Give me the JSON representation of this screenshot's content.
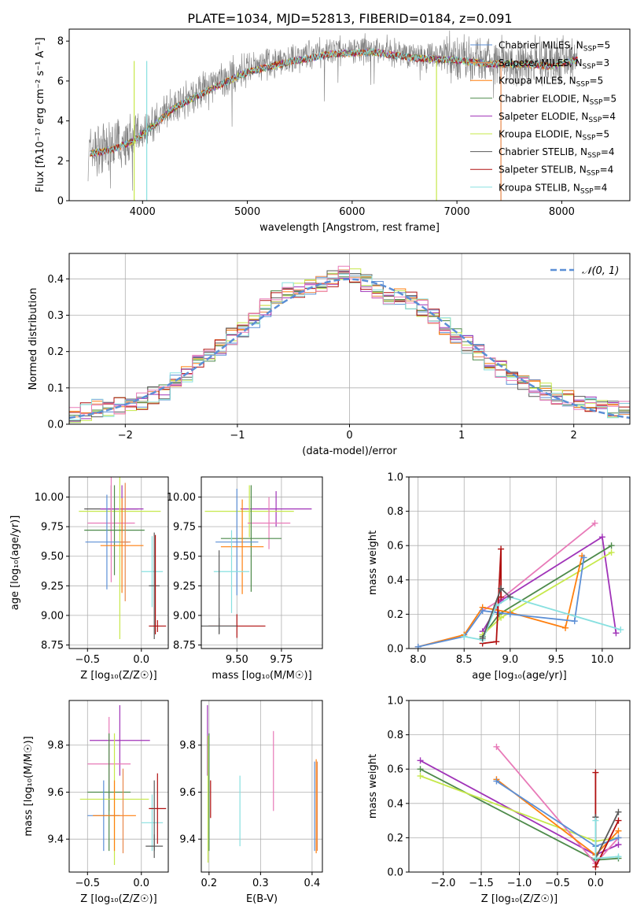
{
  "title": "PLATE=1034, MJD=52813, FIBERID=0184, z=0.091",
  "colors": {
    "chabrier_miles": "#5b8fd6",
    "salpeter_miles": "#e8874a",
    "kroupa_miles": "#ff7f0e",
    "chabrier_elodie": "#4d8a4a",
    "salpeter_elodie": "#a033b8",
    "kroupa_elodie": "#c6e84a",
    "chabrier_stelib": "#5a5a5a",
    "salpeter_stelib": "#b01010",
    "kroupa_stelib": "#88e0e0",
    "pink": "#e87ab8",
    "gaussian": "#5b8fd6"
  },
  "chart_data": [
    {
      "id": "spectrum",
      "type": "line",
      "xlabel": "wavelength [Angstrom, rest frame]",
      "ylabel": "Flux [fλ10⁻¹⁷ erg cm⁻² s⁻¹ A⁻¹]",
      "xlim": [
        3300,
        8650
      ],
      "ylim": [
        0,
        8.6
      ],
      "xticks": [
        4000,
        5000,
        6000,
        7000,
        8000
      ],
      "yticks": [
        0,
        2,
        4,
        6,
        8
      ],
      "continuum": {
        "x": [
          3500,
          3700,
          3900,
          4100,
          4300,
          4600,
          5000,
          5400,
          5800,
          6200,
          6600,
          7000,
          7300,
          7600,
          7900,
          8150
        ],
        "y": [
          2.5,
          2.7,
          3.1,
          3.9,
          4.8,
          5.6,
          6.6,
          7.1,
          7.5,
          7.6,
          7.3,
          7.2,
          7.0,
          7.0,
          6.9,
          7.2
        ]
      },
      "legend": [
        {
          "label": "Chabrier MILES, N",
          "sub": "SSP",
          "suffix": "=5",
          "color_key": "chabrier_miles"
        },
        {
          "label": "Salpeter MILES, N",
          "sub": "SSP",
          "suffix": "=3",
          "color_key": "salpeter_miles"
        },
        {
          "label": "Kroupa MILES, N",
          "sub": "SSP",
          "suffix": "=5",
          "color_key": "kroupa_miles"
        },
        {
          "label": "Chabrier ELODIE, N",
          "sub": "SSP",
          "suffix": "=5",
          "color_key": "chabrier_elodie"
        },
        {
          "label": "Salpeter ELODIE, N",
          "sub": "SSP",
          "suffix": "=4",
          "color_key": "salpeter_elodie"
        },
        {
          "label": "Kroupa ELODIE, N",
          "sub": "SSP",
          "suffix": "=5",
          "color_key": "kroupa_elodie"
        },
        {
          "label": "Chabrier STELIB, N",
          "sub": "SSP",
          "suffix": "=4",
          "color_key": "chabrier_stelib"
        },
        {
          "label": "Salpeter STELIB, N",
          "sub": "SSP",
          "suffix": "=4",
          "color_key": "salpeter_stelib"
        },
        {
          "label": "Kroupa STELIB, N",
          "sub": "SSP",
          "suffix": "=4",
          "color_key": "kroupa_stelib"
        }
      ]
    },
    {
      "id": "residuals",
      "type": "step",
      "xlabel": "(data-model)/error",
      "ylabel": "Normed distribution",
      "xlim": [
        -2.5,
        2.5
      ],
      "ylim": [
        0,
        0.47
      ],
      "xticks": [
        -2,
        -1,
        0,
        1,
        2
      ],
      "yticks": [
        0.0,
        0.1,
        0.2,
        0.3,
        0.4
      ],
      "legend": "𝒩(0, 1)",
      "bins": [
        -2.5,
        -2.4,
        -2.3,
        -2.2,
        -2.1,
        -2.0,
        -1.9,
        -1.8,
        -1.7,
        -1.6,
        -1.5,
        -1.4,
        -1.3,
        -1.2,
        -1.1,
        -1.0,
        -0.9,
        -0.8,
        -0.7,
        -0.6,
        -0.5,
        -0.4,
        -0.3,
        -0.2,
        -0.1,
        0.0,
        0.1,
        0.2,
        0.3,
        0.4,
        0.5,
        0.6,
        0.7,
        0.8,
        0.9,
        1.0,
        1.1,
        1.2,
        1.3,
        1.4,
        1.5,
        1.6,
        1.7,
        1.8,
        1.9,
        2.0,
        2.1,
        2.2,
        2.3,
        2.4
      ],
      "hist": [
        0.03,
        0.035,
        0.045,
        0.04,
        0.05,
        0.05,
        0.065,
        0.08,
        0.09,
        0.12,
        0.14,
        0.18,
        0.19,
        0.21,
        0.24,
        0.26,
        0.29,
        0.32,
        0.35,
        0.37,
        0.37,
        0.38,
        0.39,
        0.4,
        0.42,
        0.41,
        0.39,
        0.37,
        0.35,
        0.35,
        0.34,
        0.32,
        0.3,
        0.27,
        0.24,
        0.22,
        0.2,
        0.17,
        0.15,
        0.13,
        0.12,
        0.1,
        0.09,
        0.08,
        0.07,
        0.06,
        0.05,
        0.045,
        0.04,
        0.04
      ]
    },
    {
      "id": "age_vs_Z",
      "type": "errorbar",
      "xlabel": "Z [log₁₀(Z/Z☉)]",
      "ylabel": "age  [log₁₀(age/yr)]",
      "xlim": [
        -0.67,
        0.25
      ],
      "ylim": [
        8.72,
        10.17
      ],
      "xticks": [
        -0.5,
        0.0
      ],
      "yticks": [
        8.75,
        9.0,
        9.25,
        9.5,
        9.75,
        10.0
      ],
      "points": [
        {
          "x": -0.28,
          "xerr": 0.25,
          "y": 9.9,
          "yerr": 0.2,
          "color_key": "chabrier_stelib"
        },
        {
          "x": -0.18,
          "xerr": 0.2,
          "y": 9.9,
          "yerr": 0.2,
          "color_key": "salpeter_elodie"
        },
        {
          "x": -0.2,
          "xerr": 0.38,
          "y": 9.88,
          "yerr": 1.08,
          "color_key": "kroupa_elodie"
        },
        {
          "x": -0.28,
          "xerr": 0.22,
          "y": 9.78,
          "yerr": 0.5,
          "color_key": "pink"
        },
        {
          "x": -0.25,
          "xerr": 0.28,
          "y": 9.72,
          "yerr": 0.38,
          "color_key": "chabrier_elodie"
        },
        {
          "x": -0.32,
          "xerr": 0.2,
          "y": 9.62,
          "yerr": 0.4,
          "color_key": "chabrier_miles"
        },
        {
          "x": -0.18,
          "xerr": 0.2,
          "y": 9.59,
          "yerr": 0.4,
          "color_key": "kroupa_miles"
        },
        {
          "x": -0.15,
          "xerr": 0.05,
          "y": 9.62,
          "yerr": 0.5,
          "color_key": "salpeter_miles"
        },
        {
          "x": 0.1,
          "xerr": 0.1,
          "y": 9.37,
          "yerr": 0.3,
          "color_key": "kroupa_stelib"
        },
        {
          "x": 0.12,
          "xerr": 0.05,
          "y": 9.25,
          "yerr": 0.45,
          "color_key": "chabrier_stelib"
        },
        {
          "x": 0.15,
          "xerr": 0.08,
          "y": 8.91,
          "yerr": 0.05,
          "color_key": "salpeter_stelib"
        },
        {
          "x": 0.13,
          "xerr": 0.0,
          "y": 9.26,
          "yerr": 0.42,
          "color_key": "salpeter_stelib"
        }
      ]
    },
    {
      "id": "age_vs_mass",
      "type": "errorbar",
      "xlabel": "mass [log₁₀(M/M☉)]",
      "ylabel": "",
      "xlim": [
        9.3,
        9.98
      ],
      "ylim": [
        8.72,
        10.17
      ],
      "xticks": [
        9.5,
        9.75
      ],
      "yticks": [
        8.75,
        9.0,
        9.25,
        9.5,
        9.75,
        10.0
      ],
      "points": [
        {
          "x": 9.72,
          "xerr": 0.2,
          "y": 9.9,
          "yerr": 0.15,
          "color_key": "salpeter_elodie"
        },
        {
          "x": 9.57,
          "xerr": 0.25,
          "y": 9.88,
          "yerr": 0.22,
          "color_key": "kroupa_elodie"
        },
        {
          "x": 9.68,
          "xerr": 0.12,
          "y": 9.78,
          "yerr": 0.22,
          "color_key": "pink"
        },
        {
          "x": 9.58,
          "xerr": 0.17,
          "y": 9.65,
          "yerr": 0.45,
          "color_key": "chabrier_elodie"
        },
        {
          "x": 9.5,
          "xerr": 0.12,
          "y": 9.62,
          "yerr": 0.45,
          "color_key": "chabrier_miles"
        },
        {
          "x": 9.53,
          "xerr": 0.12,
          "y": 9.58,
          "yerr": 0.4,
          "color_key": "kroupa_miles"
        },
        {
          "x": 9.47,
          "xerr": 0.1,
          "y": 9.37,
          "yerr": 0.35,
          "color_key": "kroupa_stelib"
        },
        {
          "x": 9.5,
          "xerr": 0.16,
          "y": 8.91,
          "yerr": 0.1,
          "color_key": "salpeter_stelib"
        },
        {
          "x": 9.4,
          "xerr": 0.1,
          "y": 8.91,
          "yerr": 0.07,
          "color_key": "chabrier_stelib"
        },
        {
          "x": 9.4,
          "xerr": 0.0,
          "y": 9.2,
          "yerr": 0.35,
          "color_key": "chabrier_stelib"
        }
      ]
    },
    {
      "id": "massweight_vs_age",
      "type": "line",
      "xlabel": "age  [log₁₀(age/yr)]",
      "ylabel": "mass weight",
      "xlim": [
        7.9,
        10.3
      ],
      "ylim": [
        0,
        1.0
      ],
      "xticks": [
        8.0,
        8.5,
        9.0,
        9.5,
        10.0
      ],
      "yticks": [
        0.0,
        0.2,
        0.4,
        0.6,
        0.8,
        1.0
      ],
      "series": [
        {
          "color_key": "pink",
          "x": [
            8.7,
            8.88,
            9.92
          ],
          "y": [
            0.22,
            0.28,
            0.73
          ]
        },
        {
          "color_key": "salpeter_elodie",
          "x": [
            8.7,
            8.9,
            10.0,
            10.15
          ],
          "y": [
            0.1,
            0.28,
            0.65,
            0.09
          ]
        },
        {
          "color_key": "chabrier_elodie",
          "x": [
            8.7,
            8.88,
            10.1
          ],
          "y": [
            0.07,
            0.2,
            0.6
          ]
        },
        {
          "color_key": "kroupa_elodie",
          "x": [
            8.7,
            8.9,
            10.1
          ],
          "y": [
            0.08,
            0.18,
            0.56
          ]
        },
        {
          "color_key": "kroupa_miles",
          "x": [
            8.0,
            8.5,
            8.7,
            9.0,
            9.6,
            9.78
          ],
          "y": [
            0.01,
            0.08,
            0.24,
            0.21,
            0.12,
            0.54
          ]
        },
        {
          "color_key": "chabrier_miles",
          "x": [
            8.0,
            8.5,
            8.7,
            9.0,
            9.7,
            9.8
          ],
          "y": [
            0.01,
            0.07,
            0.22,
            0.2,
            0.16,
            0.53
          ]
        },
        {
          "color_key": "salpeter_stelib",
          "x": [
            8.7,
            8.85,
            8.9,
            8.9
          ],
          "y": [
            0.03,
            0.04,
            0.58,
            0.3
          ]
        },
        {
          "color_key": "kroupa_stelib",
          "x": [
            8.5,
            8.7,
            8.85,
            9.0,
            10.2
          ],
          "y": [
            0.07,
            0.05,
            0.25,
            0.3,
            0.11
          ]
        },
        {
          "color_key": "chabrier_stelib",
          "x": [
            8.7,
            8.9,
            9.0
          ],
          "y": [
            0.06,
            0.35,
            0.3
          ]
        }
      ]
    },
    {
      "id": "mass_vs_Z",
      "type": "errorbar",
      "xlabel": "Z [log₁₀(Z/Z☉)]",
      "ylabel": "mass [log₁₀(M/M☉)]",
      "xlim": [
        -0.67,
        0.25
      ],
      "ylim": [
        9.26,
        9.99
      ],
      "xticks": [
        -0.5,
        0.0
      ],
      "yticks": [
        9.4,
        9.6,
        9.8
      ],
      "points": [
        {
          "x": -0.2,
          "xerr": 0.28,
          "y": 9.82,
          "yerr": 0.15,
          "color_key": "salpeter_elodie"
        },
        {
          "x": -0.3,
          "xerr": 0.2,
          "y": 9.72,
          "yerr": 0.2,
          "color_key": "pink"
        },
        {
          "x": -0.3,
          "xerr": 0.2,
          "y": 9.6,
          "yerr": 0.25,
          "color_key": "chabrier_elodie"
        },
        {
          "x": -0.25,
          "xerr": 0.32,
          "y": 9.57,
          "yerr": 0.28,
          "color_key": "kroupa_elodie"
        },
        {
          "x": -0.35,
          "xerr": 0.15,
          "y": 9.5,
          "yerr": 0.15,
          "color_key": "chabrier_miles"
        },
        {
          "x": -0.25,
          "xerr": 0.2,
          "y": 9.5,
          "yerr": 0.15,
          "color_key": "kroupa_miles"
        },
        {
          "x": -0.17,
          "xerr": 0.0,
          "y": 9.52,
          "yerr": 0.18,
          "color_key": "salpeter_miles"
        },
        {
          "x": 0.1,
          "xerr": 0.1,
          "y": 9.47,
          "yerr": 0.12,
          "color_key": "kroupa_stelib"
        },
        {
          "x": 0.15,
          "xerr": 0.08,
          "y": 9.53,
          "yerr": 0.15,
          "color_key": "salpeter_stelib"
        },
        {
          "x": 0.12,
          "xerr": 0.08,
          "y": 9.37,
          "yerr": 0.05,
          "color_key": "chabrier_stelib"
        },
        {
          "x": 0.12,
          "xerr": 0.0,
          "y": 9.5,
          "yerr": 0.15,
          "color_key": "chabrier_stelib"
        }
      ]
    },
    {
      "id": "mass_vs_ebv",
      "type": "errorbar",
      "xlabel": "E(B-V)",
      "ylabel": "",
      "xlim": [
        0.185,
        0.42
      ],
      "ylim": [
        9.26,
        9.99
      ],
      "xticks": [
        0.2,
        0.3,
        0.4
      ],
      "yticks": [
        9.4,
        9.6,
        9.8
      ],
      "points": [
        {
          "x": 0.197,
          "y": 9.82,
          "yerr": 0.15,
          "color_key": "salpeter_elodie"
        },
        {
          "x": 0.198,
          "y": 9.57,
          "yerr": 0.27,
          "color_key": "kroupa_elodie"
        },
        {
          "x": 0.2,
          "y": 9.6,
          "yerr": 0.25,
          "color_key": "chabrier_elodie"
        },
        {
          "x": 0.203,
          "y": 9.57,
          "yerr": 0.08,
          "color_key": "salpeter_stelib"
        },
        {
          "x": 0.26,
          "y": 9.52,
          "yerr": 0.15,
          "color_key": "kroupa_stelib"
        },
        {
          "x": 0.325,
          "y": 9.69,
          "yerr": 0.17,
          "color_key": "pink"
        },
        {
          "x": 0.405,
          "y": 9.54,
          "yerr": 0.19,
          "color_key": "chabrier_miles"
        },
        {
          "x": 0.408,
          "y": 9.54,
          "yerr": 0.2,
          "color_key": "kroupa_miles"
        },
        {
          "x": 0.41,
          "y": 9.54,
          "yerr": 0.19,
          "color_key": "salpeter_miles"
        }
      ]
    },
    {
      "id": "massweight_vs_Z",
      "type": "line",
      "xlabel": "Z [log₁₀(Z/Z☉)]",
      "ylabel": "mass weight",
      "xlim": [
        -2.45,
        0.45
      ],
      "ylim": [
        0,
        1.0
      ],
      "xticks": [
        -2.0,
        -1.5,
        -1.0,
        -0.5,
        0.0
      ],
      "yticks": [
        0.0,
        0.2,
        0.4,
        0.6,
        0.8,
        1.0
      ],
      "series": [
        {
          "color_key": "salpeter_elodie",
          "x": [
            -2.3,
            0.0,
            0.3
          ],
          "y": [
            0.65,
            0.1,
            0.16
          ]
        },
        {
          "color_key": "chabrier_elodie",
          "x": [
            -2.3,
            0.0,
            0.3
          ],
          "y": [
            0.6,
            0.07,
            0.08
          ]
        },
        {
          "color_key": "kroupa_elodie",
          "x": [
            -2.3,
            0.0,
            0.3
          ],
          "y": [
            0.56,
            0.18,
            0.2
          ]
        },
        {
          "color_key": "pink",
          "x": [
            -1.3,
            0.0,
            0.3
          ],
          "y": [
            0.73,
            0.05,
            0.2
          ]
        },
        {
          "color_key": "kroupa_miles",
          "x": [
            -1.3,
            0.0,
            0.3
          ],
          "y": [
            0.54,
            0.1,
            0.24
          ]
        },
        {
          "color_key": "chabrier_miles",
          "x": [
            -1.3,
            0.0,
            0.3
          ],
          "y": [
            0.53,
            0.15,
            0.2
          ]
        },
        {
          "color_key": "salpeter_stelib",
          "x": [
            0.0,
            0.0,
            0.3
          ],
          "y": [
            0.58,
            0.03,
            0.3
          ]
        },
        {
          "color_key": "chabrier_stelib",
          "x": [
            0.0,
            0.0,
            0.3
          ],
          "y": [
            0.32,
            0.08,
            0.35
          ]
        },
        {
          "color_key": "kroupa_stelib",
          "x": [
            0.0,
            0.0,
            0.3
          ],
          "y": [
            0.3,
            0.08,
            0.09
          ]
        }
      ]
    }
  ]
}
